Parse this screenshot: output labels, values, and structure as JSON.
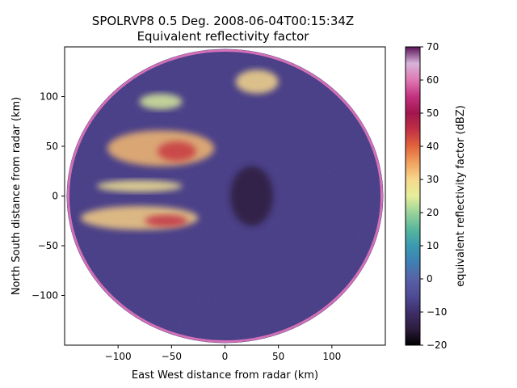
{
  "chart_data": {
    "type": "heatmap",
    "title": "SPOLRVP8 0.5 Deg. 2008-06-04T00:15:34Z",
    "subtitle": "Equivalent reflectivity factor",
    "xlabel": "East West distance from radar (km)",
    "ylabel": "North South distance from radar (km)",
    "xlim": [
      -150,
      150
    ],
    "ylim": [
      -150,
      150
    ],
    "xticks": [
      -100,
      -50,
      0,
      50,
      100
    ],
    "yticks": [
      -100,
      -50,
      0,
      50,
      100
    ],
    "radar_range_km": 150,
    "colormap": "NWSRef-like (dark purple to pink)",
    "colorbar": {
      "label": "equivalent reflectivity factor (dBZ)",
      "range": [
        -20,
        70
      ],
      "ticks": [
        -20,
        -10,
        0,
        10,
        20,
        30,
        40,
        50,
        60,
        70
      ],
      "colors": [
        "#000000",
        "#2e1d3e",
        "#3e2f6b",
        "#4f4c96",
        "#5861a7",
        "#3f7fb3",
        "#3a9ab0",
        "#58b79c",
        "#9ad39a",
        "#e6ee9b",
        "#f6d88c",
        "#f1a35f",
        "#e2643c",
        "#c23045",
        "#a1154d",
        "#c3317f",
        "#de79b2",
        "#d8b3d9",
        "#5a1358"
      ]
    },
    "regions": [
      {
        "name": "northwest convective band",
        "x": -60,
        "y": 48,
        "rx": 50,
        "ry": 18,
        "dbz": 33
      },
      {
        "name": "core northwest",
        "x": -45,
        "y": 45,
        "rx": 18,
        "ry": 10,
        "dbz": 44
      },
      {
        "name": "far north cells",
        "x": 30,
        "y": 115,
        "rx": 20,
        "ry": 12,
        "dbz": 30
      },
      {
        "name": "west line",
        "x": -80,
        "y": 10,
        "rx": 40,
        "ry": 6,
        "dbz": 28
      },
      {
        "name": "southwest line",
        "x": -80,
        "y": -22,
        "rx": 55,
        "ry": 12,
        "dbz": 31
      },
      {
        "name": "southwest core",
        "x": -55,
        "y": -25,
        "rx": 20,
        "ry": 6,
        "dbz": 45
      },
      {
        "name": "north cluster",
        "x": -60,
        "y": 95,
        "rx": 20,
        "ry": 8,
        "dbz": 24
      },
      {
        "name": "clear air east",
        "x": 25,
        "y": 0,
        "rx": 20,
        "ry": 30,
        "dbz": -15
      }
    ]
  }
}
